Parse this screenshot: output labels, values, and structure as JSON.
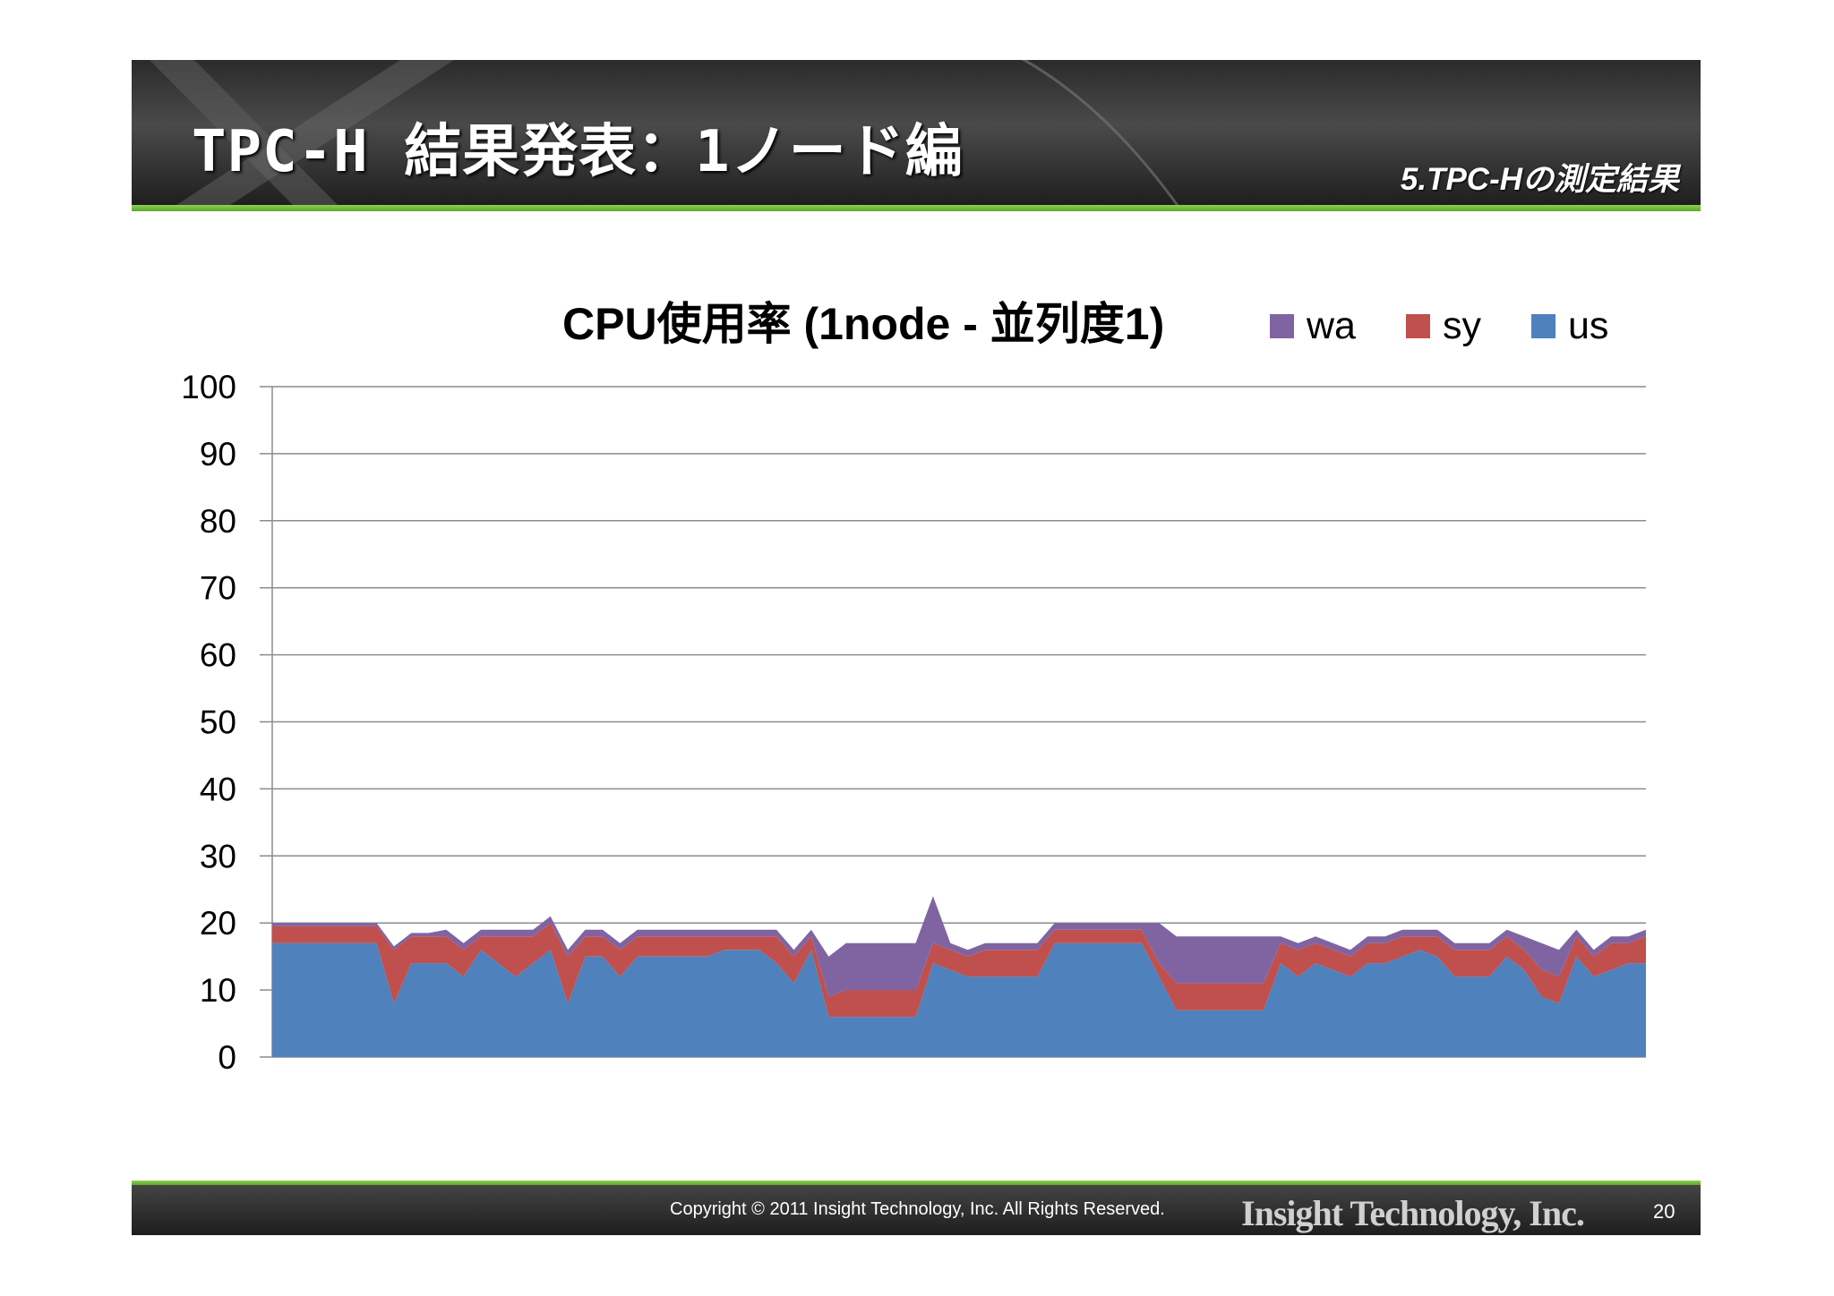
{
  "slide": {
    "title": "TPC-H 結果発表：1ノード編",
    "section": "5.TPC-Hの測定結果",
    "copyright": "Copyright © 2011 Insight Technology, Inc. All Rights Reserved.",
    "company": "Insight Technology, Inc.",
    "page_number": "20"
  },
  "colors": {
    "wa": "#8064a2",
    "sy": "#c0504d",
    "us": "#4f81bd"
  },
  "chart_data": {
    "type": "area",
    "stacked": true,
    "title": "CPU使用率 (1node - 並列度1)",
    "xlabel": "",
    "ylabel": "",
    "ylim": [
      0,
      100
    ],
    "yticks": [
      "0",
      "10",
      "20",
      "30",
      "40",
      "50",
      "60",
      "70",
      "80",
      "90",
      "100"
    ],
    "grid": true,
    "legend_position": "top-right",
    "n_points": 80,
    "series": [
      {
        "name": "wa",
        "values": [
          0.5,
          0.5,
          0.5,
          0.5,
          0.5,
          0.5,
          0.5,
          0.5,
          0.5,
          0.5,
          1,
          1,
          1,
          1,
          1,
          1,
          1,
          1,
          1,
          1,
          1,
          1,
          1,
          1,
          1,
          1,
          1,
          1,
          1,
          1,
          1,
          1,
          6,
          7,
          7,
          7,
          7,
          7,
          7,
          1,
          1,
          1,
          1,
          1,
          1,
          1,
          1,
          1,
          1,
          1,
          1,
          6,
          7,
          7,
          7,
          7,
          7,
          7,
          1,
          1,
          1,
          1,
          1,
          1,
          1,
          1,
          1,
          1,
          1,
          1,
          1,
          1,
          2,
          4,
          4,
          1,
          1,
          1,
          1,
          1
        ]
      },
      {
        "name": "sy",
        "values": [
          2.5,
          2.5,
          2.5,
          2.5,
          2.5,
          2.5,
          2.5,
          8,
          4,
          4,
          4,
          4,
          2,
          4,
          6,
          4,
          4,
          7,
          3,
          3,
          4,
          3,
          3,
          3,
          3,
          3,
          2,
          2,
          2,
          4,
          4,
          2,
          3,
          4,
          4,
          4,
          4,
          4,
          3,
          3,
          3,
          4,
          4,
          4,
          4,
          2,
          2,
          2,
          2,
          2,
          2,
          2,
          4,
          4,
          4,
          4,
          4,
          4,
          3,
          4,
          3,
          3,
          3,
          3,
          3,
          3,
          2,
          3,
          4,
          4,
          4,
          3,
          3,
          4,
          4,
          3,
          3,
          4,
          3,
          4
        ]
      },
      {
        "name": "us",
        "values": [
          17,
          17,
          17,
          17,
          17,
          17,
          17,
          8,
          14,
          14,
          14,
          12,
          16,
          14,
          12,
          14,
          16,
          8,
          15,
          15,
          12,
          15,
          15,
          15,
          15,
          15,
          16,
          16,
          16,
          14,
          11,
          16,
          6,
          6,
          6,
          6,
          6,
          6,
          14,
          13,
          12,
          12,
          12,
          12,
          12,
          17,
          17,
          17,
          17,
          17,
          17,
          12,
          7,
          7,
          7,
          7,
          7,
          7,
          14,
          12,
          14,
          13,
          12,
          14,
          14,
          15,
          16,
          15,
          12,
          12,
          12,
          15,
          13,
          9,
          8,
          15,
          12,
          13,
          14,
          14
        ]
      }
    ]
  }
}
